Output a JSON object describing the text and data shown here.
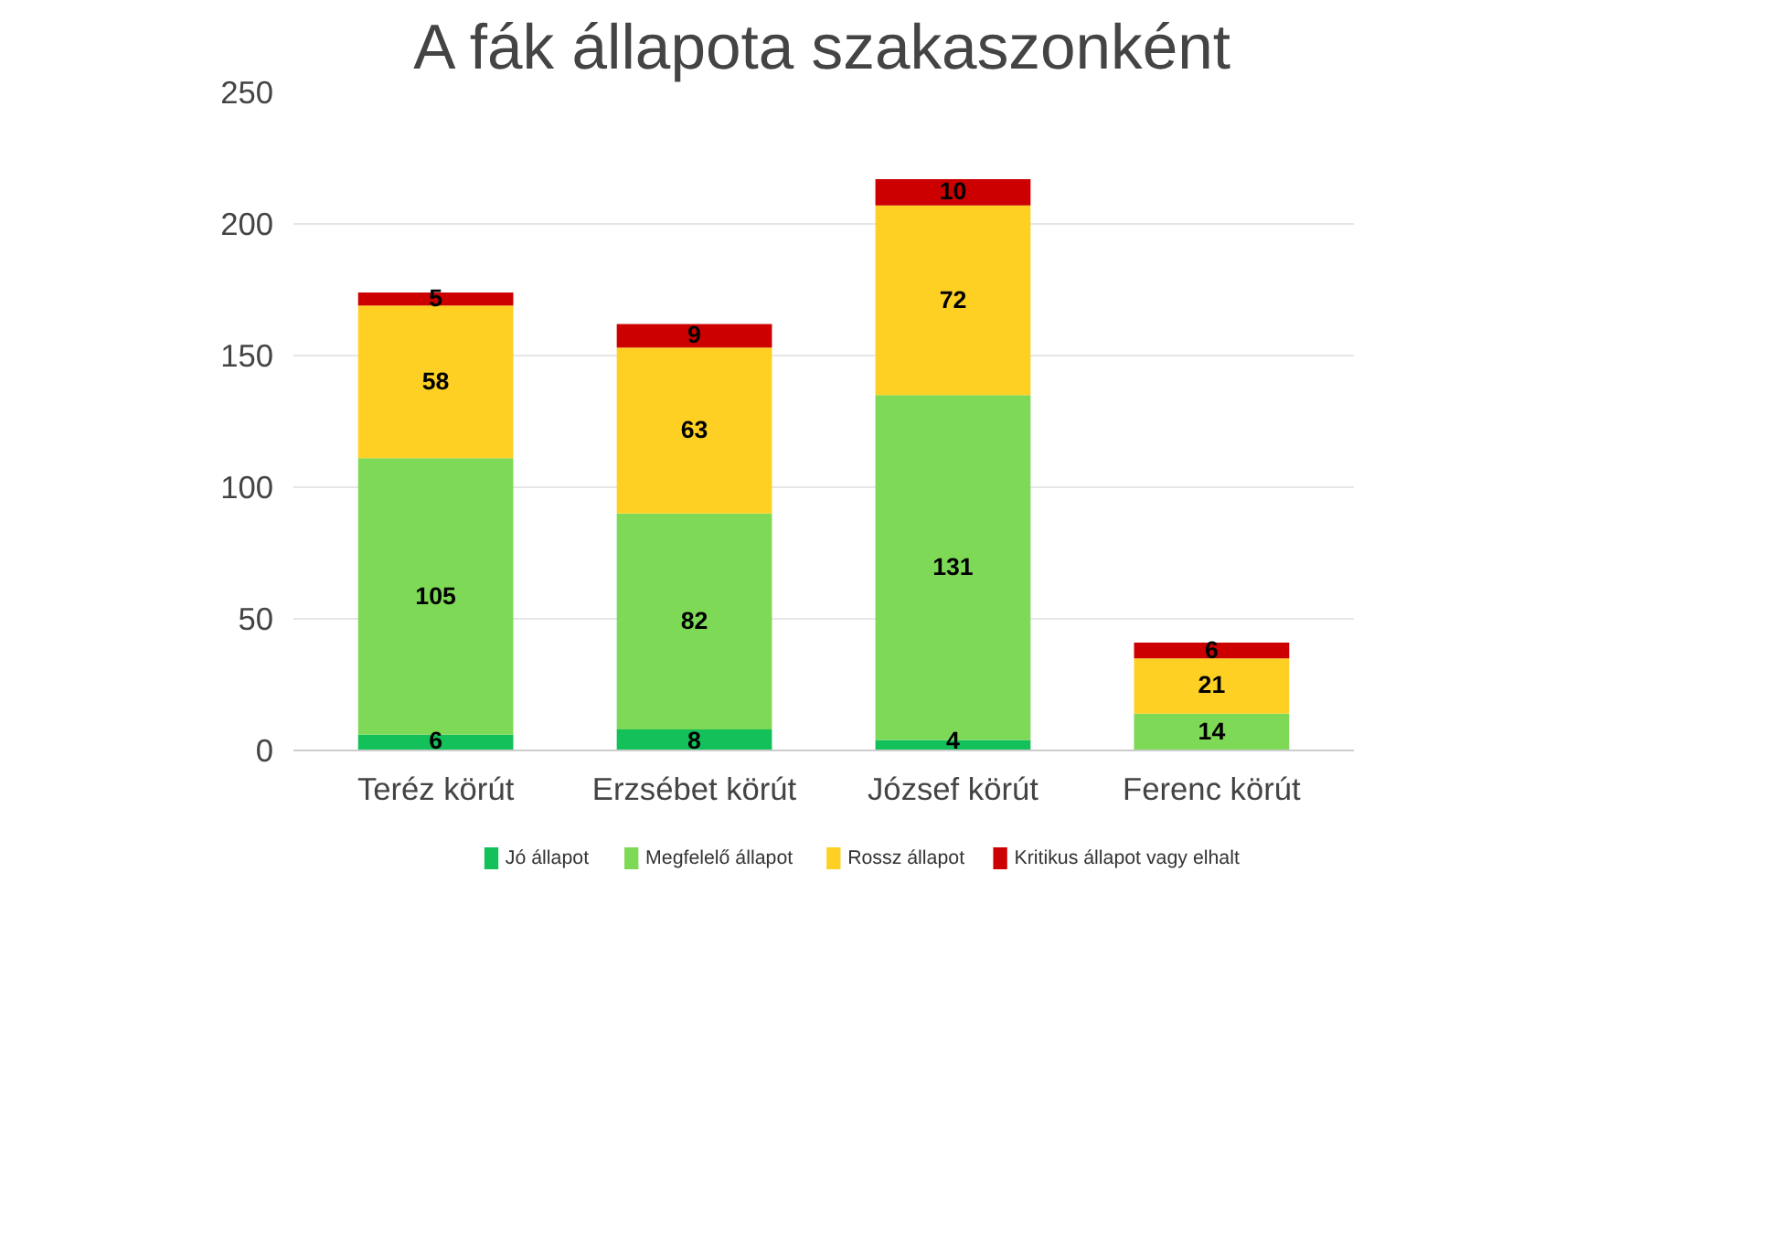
{
  "chart_data": {
    "type": "bar",
    "title": "A fák állapota szakaszonként",
    "stacked": true,
    "categories": [
      "Teréz körút",
      "Erzsébet körút",
      "József körút",
      "Ferenc körút"
    ],
    "series": [
      {
        "name": "Jó állapot",
        "color": "#13c05a",
        "values": [
          6,
          8,
          4,
          0
        ],
        "value_labels": [
          "6",
          "8",
          "4",
          null
        ]
      },
      {
        "name": "Megfelelő állapot",
        "color": "#7ed957",
        "values": [
          105,
          82,
          131,
          14
        ],
        "value_labels": [
          "105",
          "82",
          "131",
          "14"
        ]
      },
      {
        "name": "Rossz állapot",
        "color": "#fdd023",
        "values": [
          58,
          63,
          72,
          21
        ],
        "value_labels": [
          "58",
          "63",
          "72",
          "21"
        ]
      },
      {
        "name": "Kritikus állapot vagy elhalt",
        "color": "#cc0000",
        "values": [
          5,
          9,
          10,
          6
        ],
        "value_labels": [
          "5",
          "9",
          "10",
          "6"
        ]
      }
    ],
    "ylim": [
      0,
      250
    ],
    "yticks": [
      0,
      50,
      100,
      150,
      200,
      250
    ],
    "grid": "y",
    "legend": "bottom"
  }
}
